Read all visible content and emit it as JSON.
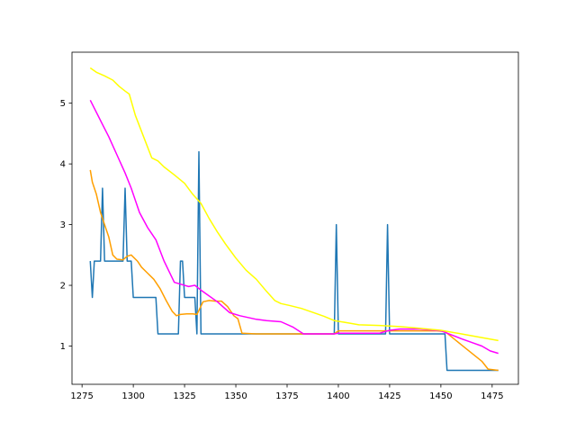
{
  "chart_data": {
    "type": "line",
    "title": "",
    "xlabel": "",
    "ylabel": "",
    "xlim": [
      1270.1,
      1487.8
    ],
    "ylim": [
      0.37,
      5.84
    ],
    "xticks": [
      1275,
      1300,
      1325,
      1350,
      1375,
      1400,
      1425,
      1450,
      1475
    ],
    "yticks": [
      1,
      2,
      3,
      4,
      5
    ],
    "grid": false,
    "legend": "none",
    "series": [
      {
        "color": "#1f77b4",
        "x": [
          1279,
          1280,
          1281,
          1284,
          1285,
          1286,
          1295,
          1296,
          1297,
          1299,
          1300,
          1311,
          1312,
          1322,
          1323,
          1324,
          1325,
          1330,
          1331,
          1332,
          1333,
          1398,
          1399,
          1400,
          1423,
          1424,
          1425,
          1452,
          1453,
          1478
        ],
        "y": [
          2.4,
          1.8,
          2.4,
          2.4,
          3.6,
          2.4,
          2.4,
          3.6,
          2.4,
          2.4,
          1.8,
          1.8,
          1.2,
          1.2,
          2.4,
          2.4,
          1.8,
          1.8,
          1.2,
          4.2,
          1.2,
          1.2,
          3.0,
          1.2,
          1.2,
          3.0,
          1.2,
          1.2,
          0.6,
          0.6
        ]
      },
      {
        "color": "#ff9f00",
        "x": [
          1279,
          1280,
          1282,
          1284,
          1286,
          1288,
          1290,
          1292,
          1295,
          1297,
          1299,
          1302,
          1304,
          1307,
          1310,
          1313,
          1316,
          1319,
          1321,
          1323,
          1326,
          1329,
          1331,
          1334,
          1337,
          1340,
          1343,
          1346,
          1349,
          1351,
          1353,
          1360,
          1370,
          1380,
          1390,
          1398,
          1400,
          1410,
          1420,
          1425,
          1430,
          1440,
          1448,
          1452,
          1460,
          1470,
          1473,
          1478
        ],
        "y": [
          3.9,
          3.7,
          3.5,
          3.2,
          3.0,
          2.8,
          2.5,
          2.43,
          2.42,
          2.48,
          2.5,
          2.4,
          2.3,
          2.2,
          2.1,
          1.95,
          1.75,
          1.57,
          1.5,
          1.52,
          1.53,
          1.53,
          1.52,
          1.73,
          1.75,
          1.74,
          1.74,
          1.65,
          1.5,
          1.45,
          1.21,
          1.2,
          1.2,
          1.2,
          1.2,
          1.2,
          1.25,
          1.25,
          1.25,
          1.25,
          1.25,
          1.25,
          1.25,
          1.24,
          1.02,
          0.75,
          0.62,
          0.6
        ]
      },
      {
        "color": "#ff00ff",
        "x": [
          1279,
          1282,
          1285,
          1288,
          1292,
          1296,
          1299,
          1303,
          1307,
          1311,
          1315,
          1320,
          1323,
          1327,
          1330,
          1333,
          1336,
          1341,
          1347,
          1352,
          1360,
          1365,
          1372,
          1378,
          1383,
          1390,
          1398,
          1400,
          1410,
          1420,
          1425,
          1430,
          1440,
          1450,
          1460,
          1470,
          1474,
          1478
        ],
        "y": [
          5.05,
          4.85,
          4.65,
          4.45,
          4.15,
          3.85,
          3.6,
          3.2,
          2.95,
          2.75,
          2.4,
          2.05,
          2.02,
          1.98,
          2.0,
          1.92,
          1.85,
          1.73,
          1.55,
          1.5,
          1.44,
          1.42,
          1.4,
          1.31,
          1.2,
          1.2,
          1.2,
          1.21,
          1.21,
          1.21,
          1.26,
          1.28,
          1.28,
          1.25,
          1.12,
          1.0,
          0.92,
          0.88
        ]
      },
      {
        "color": "#ffff00",
        "x": [
          1279,
          1282,
          1286,
          1290,
          1293,
          1296,
          1298,
          1301,
          1305,
          1309,
          1312,
          1315,
          1320,
          1325,
          1329,
          1333,
          1337,
          1341,
          1345,
          1350,
          1355,
          1360,
          1365,
          1369,
          1372,
          1376,
          1382,
          1388,
          1393,
          1398,
          1405,
          1410,
          1420,
          1430,
          1440,
          1450,
          1460,
          1470,
          1478
        ],
        "y": [
          5.58,
          5.51,
          5.45,
          5.38,
          5.28,
          5.2,
          5.15,
          4.8,
          4.45,
          4.1,
          4.05,
          3.95,
          3.82,
          3.68,
          3.5,
          3.35,
          3.1,
          2.88,
          2.68,
          2.45,
          2.25,
          2.1,
          1.9,
          1.75,
          1.7,
          1.67,
          1.62,
          1.55,
          1.49,
          1.42,
          1.38,
          1.35,
          1.34,
          1.32,
          1.29,
          1.26,
          1.2,
          1.14,
          1.09
        ]
      }
    ]
  }
}
